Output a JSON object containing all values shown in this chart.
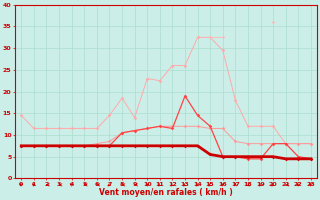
{
  "xlabel": "Vent moyen/en rafales ( km/h )",
  "xlim": [
    -0.5,
    23.5
  ],
  "ylim": [
    0,
    40
  ],
  "yticks": [
    0,
    5,
    10,
    15,
    20,
    25,
    30,
    35,
    40
  ],
  "xticks": [
    0,
    1,
    2,
    3,
    4,
    5,
    6,
    7,
    8,
    9,
    10,
    11,
    12,
    13,
    14,
    15,
    16,
    17,
    18,
    19,
    20,
    21,
    22,
    23
  ],
  "background_color": "#cceee8",
  "grid_color": "#aaddcc",
  "series": [
    {
      "color": "#ffaaaa",
      "linewidth": 0.7,
      "markersize": 1.8,
      "y": [
        14.5,
        11.5,
        11.5,
        11.5,
        11.5,
        11.5,
        11.5,
        14.5,
        18.5,
        14.0,
        23.0,
        22.5,
        26.0,
        26.0,
        32.5,
        32.5,
        29.5,
        18.0,
        12.0,
        12.0,
        12.0,
        8.0,
        8.0,
        8.0
      ]
    },
    {
      "color": "#ffbbbb",
      "linewidth": 0.7,
      "markersize": 1.8,
      "y": [
        null,
        null,
        null,
        null,
        null,
        null,
        null,
        null,
        null,
        null,
        null,
        null,
        null,
        null,
        null,
        32.5,
        32.5,
        null,
        null,
        null,
        36.0,
        null,
        null,
        null
      ]
    },
    {
      "color": "#ff9999",
      "linewidth": 0.7,
      "markersize": 1.8,
      "y": [
        7.5,
        7.5,
        7.5,
        7.5,
        7.5,
        7.5,
        8.0,
        8.5,
        10.5,
        11.0,
        11.5,
        12.0,
        12.0,
        12.0,
        12.0,
        11.5,
        11.5,
        8.5,
        8.0,
        8.0,
        8.0,
        8.0,
        8.0,
        8.0
      ]
    },
    {
      "color": "#ff4444",
      "linewidth": 0.9,
      "markersize": 1.8,
      "y": [
        7.5,
        7.5,
        7.5,
        7.5,
        7.5,
        7.5,
        7.5,
        7.5,
        10.5,
        11.0,
        11.5,
        12.0,
        11.5,
        19.0,
        14.5,
        12.0,
        5.0,
        5.0,
        4.5,
        4.5,
        8.0,
        8.0,
        5.0,
        4.5
      ]
    },
    {
      "color": "#cc0000",
      "linewidth": 2.0,
      "markersize": 1.8,
      "y": [
        7.5,
        7.5,
        7.5,
        7.5,
        7.5,
        7.5,
        7.5,
        7.5,
        7.5,
        7.5,
        7.5,
        7.5,
        7.5,
        7.5,
        7.5,
        5.5,
        5.0,
        5.0,
        5.0,
        5.0,
        5.0,
        4.5,
        4.5,
        4.5
      ]
    }
  ],
  "arrow_dirs": [
    225,
    225,
    270,
    270,
    225,
    270,
    270,
    315,
    270,
    270,
    135,
    315,
    315,
    315,
    315,
    315,
    225,
    180,
    45,
    315,
    315,
    270,
    225,
    225
  ]
}
